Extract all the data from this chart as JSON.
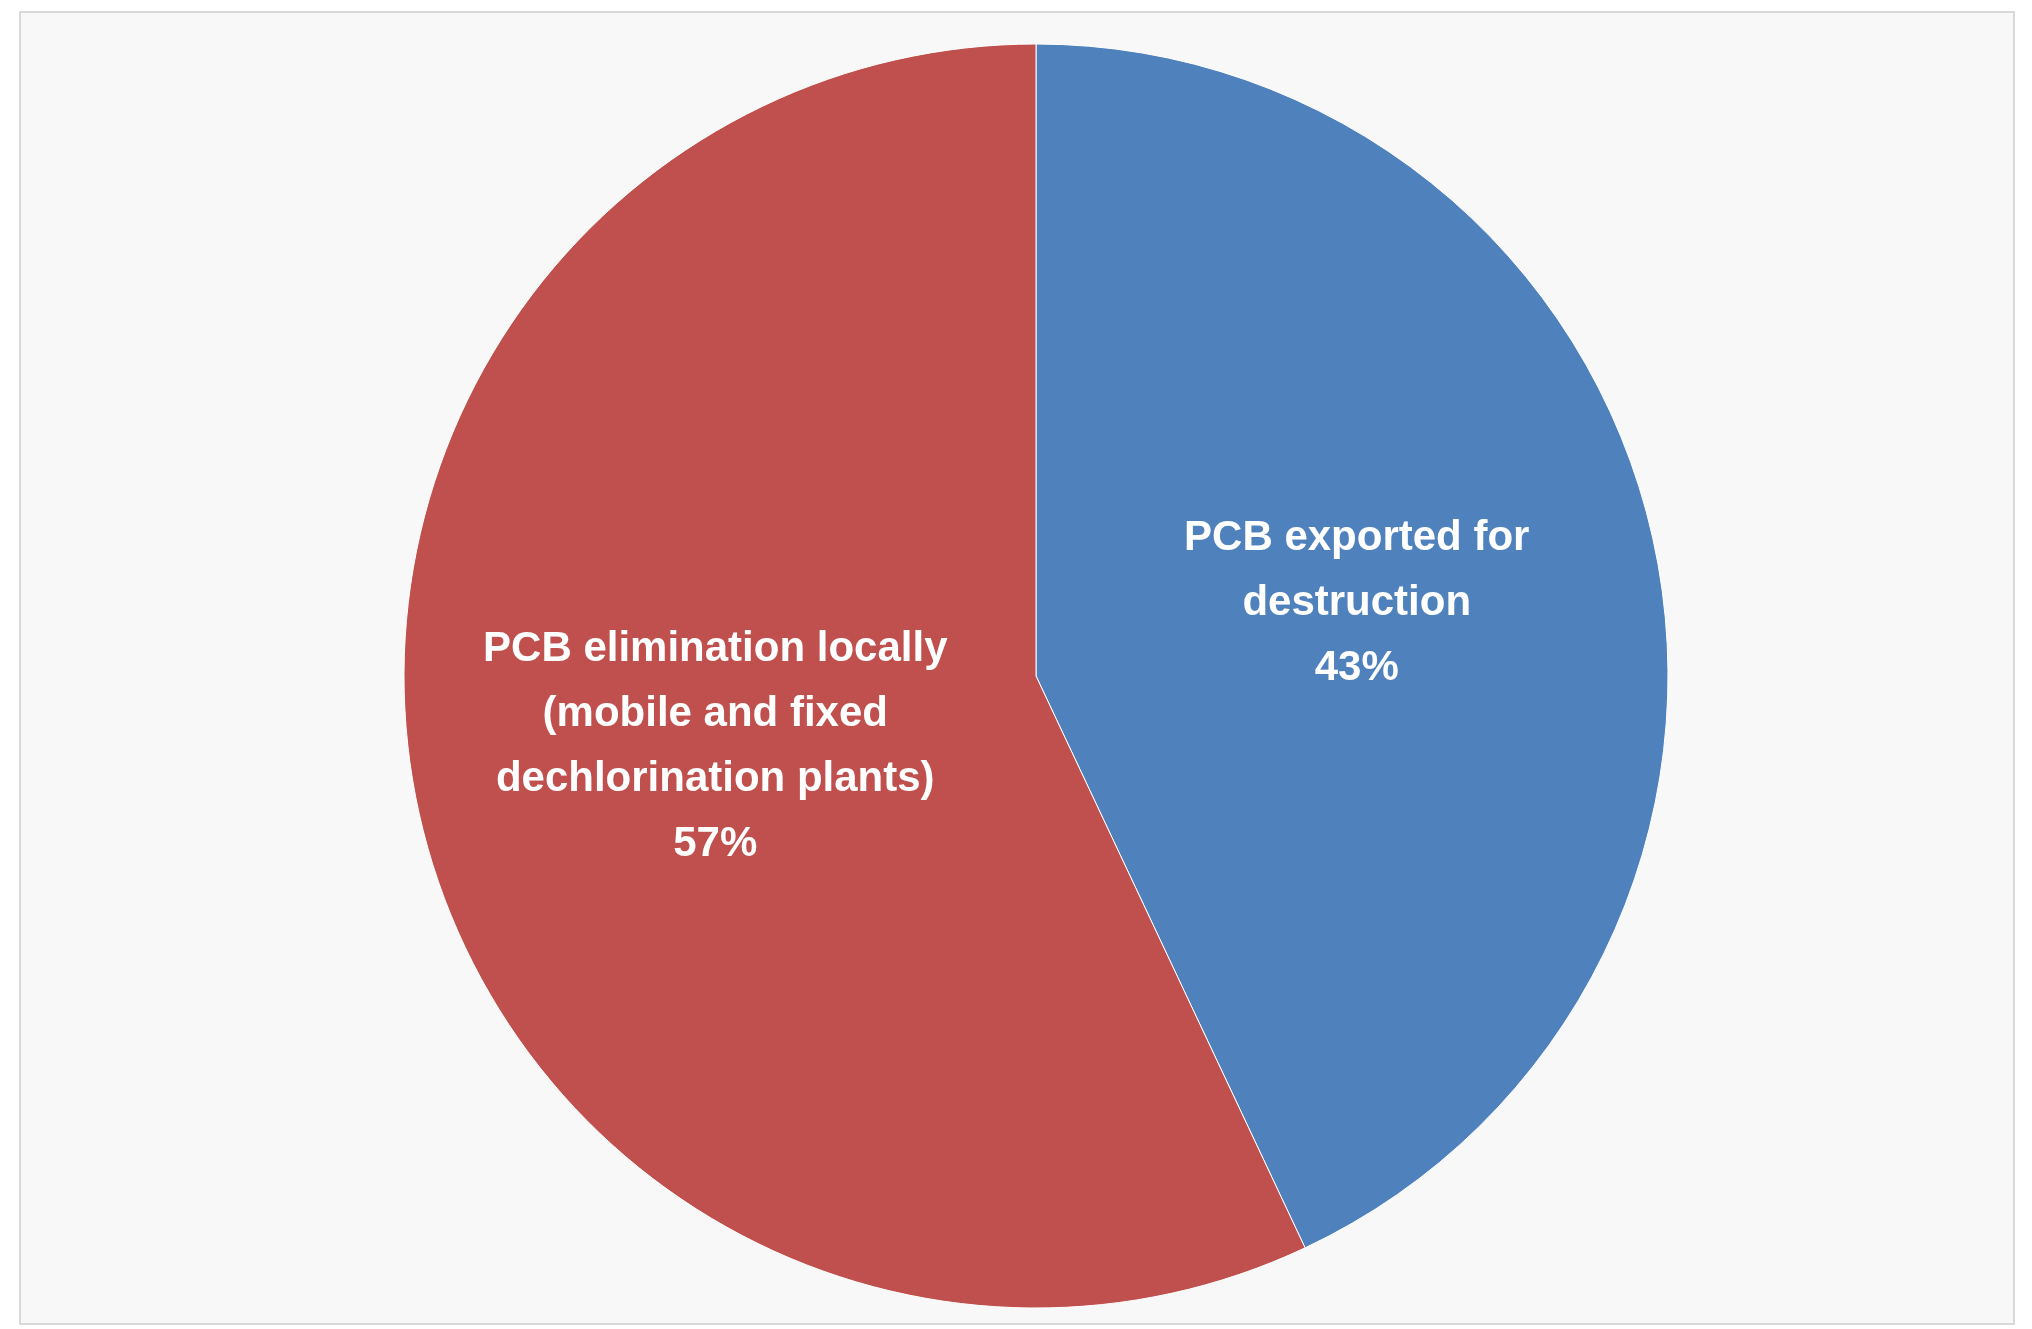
{
  "chart_data": {
    "type": "pie",
    "categories": [
      "PCB exported for destruction",
      "PCB elimination locally (mobile and fixed dechlorination plants)"
    ],
    "values": [
      43,
      57
    ],
    "colors": [
      "#4f81bd",
      "#c0504d"
    ],
    "value_labels": [
      "43%",
      "57%"
    ]
  }
}
